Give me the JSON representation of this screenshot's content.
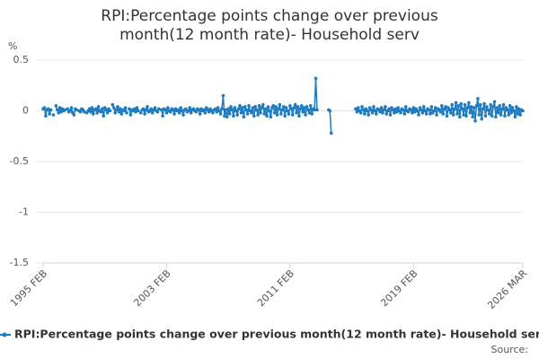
{
  "chart_data": {
    "type": "line",
    "title": "RPI:Percentage points change over previous month(12 month rate)- Household serv",
    "y_label": "%",
    "source": "Source:",
    "legend": "bottom",
    "grid": true,
    "ylim": [
      -1.5,
      0.5
    ],
    "yticks": [
      0.5,
      0,
      -0.5,
      -1,
      -1.5
    ],
    "categories": [
      "1995 FEB",
      null,
      null,
      null,
      null,
      null,
      null,
      null,
      null,
      null,
      null,
      null,
      null,
      null,
      null,
      null,
      null,
      null,
      null,
      null,
      null,
      null,
      null,
      null,
      null,
      null,
      null,
      null,
      null,
      null,
      null,
      null,
      null,
      null,
      null,
      null,
      null,
      null,
      null,
      null,
      null,
      null,
      null,
      null,
      null,
      null,
      null,
      null,
      null,
      null,
      null,
      null,
      null,
      null,
      null,
      null,
      null,
      null,
      null,
      null,
      null,
      null,
      null,
      null,
      null,
      null,
      null,
      null,
      null,
      null,
      null,
      null,
      null,
      null,
      null,
      null,
      null,
      null,
      null,
      null,
      null,
      null,
      null,
      null,
      null,
      null,
      null,
      null,
      null,
      null,
      null,
      null,
      null,
      null,
      null,
      null,
      "2003 FEB",
      null,
      null,
      null,
      null,
      null,
      null,
      null,
      null,
      null,
      null,
      null,
      null,
      null,
      null,
      null,
      null,
      null,
      null,
      null,
      null,
      null,
      null,
      null,
      null,
      null,
      null,
      null,
      null,
      null,
      null,
      null,
      null,
      null,
      null,
      null,
      null,
      null,
      null,
      null,
      null,
      null,
      null,
      null,
      null,
      null,
      null,
      null,
      null,
      null,
      null,
      null,
      null,
      null,
      null,
      null,
      null,
      null,
      null,
      null,
      null,
      null,
      null,
      null,
      null,
      null,
      null,
      null,
      null,
      null,
      null,
      null,
      null,
      null,
      null,
      null,
      null,
      null,
      null,
      null,
      null,
      null,
      null,
      null,
      null,
      null,
      null,
      null,
      null,
      null,
      null,
      null,
      null,
      null,
      null,
      null,
      "2011 FEB",
      null,
      null,
      null,
      null,
      null,
      null,
      null,
      null,
      null,
      null,
      null,
      null,
      null,
      null,
      null,
      null,
      null,
      null,
      null,
      null,
      null,
      null,
      null,
      null,
      null,
      null,
      null,
      null,
      null,
      null,
      null,
      null,
      null,
      null,
      null,
      null,
      null,
      null,
      null,
      null,
      null,
      null,
      null,
      null,
      null,
      null,
      null,
      null,
      null,
      null,
      null,
      null,
      null,
      null,
      null,
      null,
      null,
      null,
      null,
      null,
      null,
      null,
      null,
      null,
      null,
      null,
      null,
      null,
      null,
      null,
      null,
      null,
      null,
      null,
      null,
      null,
      null,
      null,
      null,
      null,
      null,
      null,
      null,
      null,
      null,
      null,
      null,
      null,
      null,
      null,
      null,
      null,
      null,
      null,
      null,
      "2019 FEB",
      null,
      null,
      null,
      null,
      null,
      null,
      null,
      null,
      null,
      null,
      null,
      null,
      null,
      null,
      null,
      null,
      null,
      null,
      null,
      null,
      null,
      null,
      null,
      null,
      null,
      null,
      null,
      null,
      null,
      null,
      null,
      null,
      null,
      null,
      null,
      null,
      null,
      null,
      null,
      null,
      null,
      null,
      null,
      null,
      null,
      null,
      null,
      null,
      null,
      null,
      null,
      null,
      null,
      null,
      null,
      null,
      null,
      null,
      null,
      null,
      null,
      null,
      null,
      null,
      null,
      null,
      null,
      null,
      null,
      null,
      null,
      null,
      null,
      null,
      null,
      null,
      null,
      null,
      null,
      null,
      null,
      null,
      null,
      null,
      "2026 MAR"
    ],
    "series": [
      {
        "name": "RPI:Percentage points change over previous month(12 month rate)- Household serv",
        "color": "#1f7bbf",
        "values": [
          0.02,
          0.03,
          -0.05,
          0.01,
          0.02,
          -0.03,
          0.01,
          null,
          -0.04,
          null,
          0.05,
          0.01,
          -0.02,
          0.03,
          -0.01,
          0.02,
          0.0,
          0.01,
          null,
          0.02,
          -0.01,
          0.0,
          0.03,
          -0.02,
          -0.04,
          0.02,
          0.01,
          null,
          0.0,
          -0.01,
          0.02,
          0.01,
          -0.01,
          null,
          -0.02,
          0.0,
          0.02,
          -0.01,
          0.03,
          -0.03,
          0.01,
          0.02,
          -0.02,
          0.04,
          0.0,
          -0.01,
          0.02,
          -0.05,
          0.03,
          0.01,
          -0.02,
          0.02,
          0.0,
          null,
          0.06,
          0.03,
          -0.02,
          0.01,
          0.04,
          -0.01,
          0.02,
          -0.03,
          0.01,
          0.0,
          0.03,
          -0.02,
          null,
          0.02,
          -0.04,
          0.01,
          0.0,
          0.02,
          -0.01,
          0.03,
          0.0,
          null,
          -0.02,
          0.01,
          0.02,
          -0.03,
          0.01,
          0.04,
          -0.01,
          0.0,
          0.02,
          -0.02,
          0.01,
          0.03,
          0.0,
          -0.01,
          0.02,
          null,
          0.01,
          -0.05,
          0.02,
          0.01,
          -0.02,
          0.03,
          0.0,
          -0.01,
          0.02,
          0.01,
          -0.03,
          0.02,
          0.0,
          0.01,
          -0.02,
          0.03,
          0.0,
          -0.04,
          0.01,
          0.02,
          -0.01,
          0.0,
          0.03,
          -0.02,
          0.01,
          0.02,
          0.0,
          -0.01,
          0.02,
          0.01,
          -0.03,
          0.02,
          0.0,
          0.01,
          -0.02,
          0.03,
          0.01,
          -0.01,
          0.02,
          0.0,
          -0.02,
          0.01,
          0.02,
          -0.01,
          0.03,
          0.0,
          -0.03,
          0.02,
          0.15,
          -0.05,
          0.01,
          -0.06,
          0.02,
          -0.03,
          0.04,
          0.01,
          -0.05,
          0.03,
          0.0,
          -0.04,
          0.02,
          0.05,
          -0.02,
          0.03,
          -0.06,
          0.04,
          0.01,
          -0.03,
          0.05,
          0.0,
          -0.02,
          0.03,
          -0.05,
          0.04,
          0.01,
          -0.04,
          0.05,
          -0.02,
          0.03,
          0.06,
          -0.03,
          0.02,
          -0.05,
          0.04,
          0.0,
          -0.06,
          0.03,
          0.05,
          -0.02,
          0.04,
          -0.04,
          0.02,
          0.06,
          -0.03,
          0.01,
          0.04,
          -0.05,
          0.03,
          0.0,
          -0.03,
          0.05,
          0.02,
          -0.04,
          0.03,
          0.06,
          -0.02,
          0.04,
          -0.05,
          0.02,
          0.05,
          -0.01,
          0.03,
          -0.04,
          0.04,
          0.01,
          -0.02,
          0.05,
          -0.03,
          0.02,
          0.01,
          0.32,
          0.01,
          null,
          null,
          null,
          null,
          null,
          null,
          null,
          null,
          0.01,
          0.0,
          -0.22,
          null,
          null,
          null,
          null,
          null,
          null,
          null,
          null,
          null,
          null,
          null,
          null,
          null,
          null,
          null,
          null,
          null,
          null,
          0.02,
          -0.01,
          0.03,
          0.0,
          -0.02,
          0.04,
          0.01,
          -0.03,
          0.02,
          0.0,
          -0.04,
          0.03,
          0.01,
          -0.02,
          0.04,
          0.0,
          -0.03,
          0.02,
          0.01,
          -0.01,
          0.03,
          -0.02,
          0.01,
          0.04,
          -0.03,
          0.0,
          0.02,
          -0.04,
          0.03,
          0.01,
          -0.02,
          0.02,
          -0.01,
          0.03,
          0.0,
          -0.02,
          0.02,
          0.01,
          -0.03,
          0.04,
          0.0,
          -0.01,
          0.02,
          0.01,
          -0.02,
          0.03,
          -0.01,
          0.02,
          0.0,
          -0.04,
          0.03,
          0.01,
          -0.02,
          0.04,
          0.0,
          -0.03,
          0.02,
          0.01,
          -0.03,
          0.04,
          -0.02,
          0.0,
          0.03,
          -0.04,
          0.02,
          0.01,
          -0.01,
          0.05,
          -0.03,
          0.02,
          0.04,
          -0.05,
          0.03,
          0.01,
          -0.02,
          0.06,
          -0.04,
          0.02,
          0.08,
          -0.03,
          0.05,
          -0.06,
          0.07,
          0.02,
          -0.04,
          0.06,
          -0.05,
          0.03,
          0.08,
          -0.02,
          0.04,
          -0.06,
          0.03,
          -0.1,
          0.05,
          0.12,
          -0.04,
          0.06,
          -0.08,
          0.02,
          0.07,
          -0.05,
          0.04,
          0.01,
          -0.03,
          0.06,
          -0.05,
          0.04,
          0.09,
          -0.06,
          0.03,
          -0.02,
          0.05,
          -0.04,
          0.02,
          0.06,
          -0.05,
          0.03,
          0.01,
          -0.04,
          0.05,
          -0.02,
          0.03,
          0.0,
          -0.06,
          0.04,
          -0.03,
          0.02,
          -0.04,
          0.01,
          0.0
        ]
      }
    ]
  }
}
